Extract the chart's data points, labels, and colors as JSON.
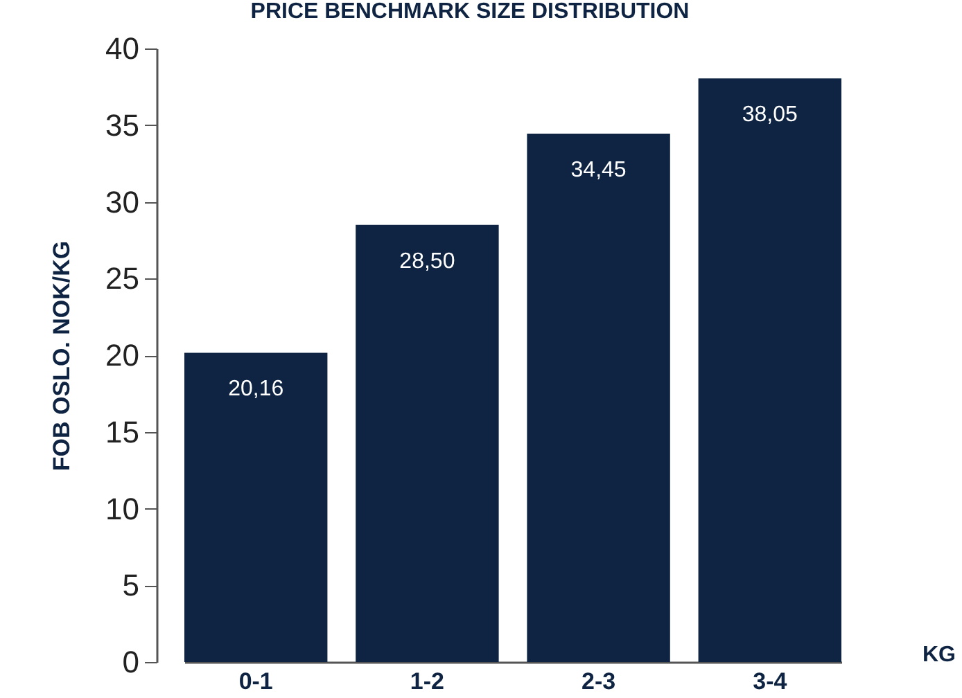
{
  "chart_data": {
    "type": "bar",
    "title": "PRICE BENCHMARK SIZE DISTRIBUTION",
    "xlabel": "KG",
    "ylabel": "FOB OSLO. NOK/KG",
    "categories": [
      "0-1",
      "1-2",
      "2-3",
      "3-4"
    ],
    "values": [
      20.16,
      28.5,
      34.45,
      38.05
    ],
    "value_labels": [
      "20,16",
      "28,50",
      "34,45",
      "38,05"
    ],
    "color": "#0e2442",
    "ylim": [
      0,
      40
    ],
    "yticks": [
      0,
      5,
      10,
      15,
      20,
      25,
      30,
      35,
      40
    ],
    "grid": false
  }
}
